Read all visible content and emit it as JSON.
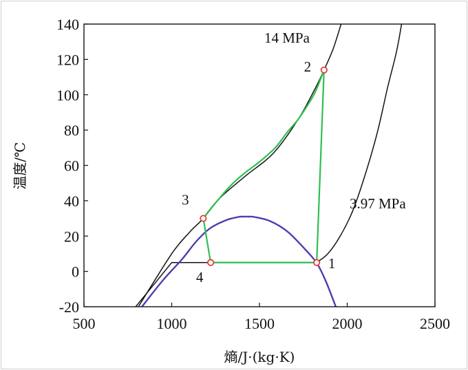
{
  "chart_data": {
    "type": "line",
    "xlabel": "熵/J·(kg·K)",
    "ylabel": "温度/℃",
    "xlim": [
      500,
      2500
    ],
    "ylim": [
      -20,
      140
    ],
    "x_ticks": [
      500,
      1000,
      1500,
      2000,
      2500
    ],
    "y_ticks": [
      -20,
      0,
      20,
      40,
      60,
      80,
      100,
      120,
      140
    ],
    "grid": false,
    "colors": {
      "saturation_dome": "#4a3fb0",
      "cycle": "#2fbf4f",
      "isobar": "#111111",
      "state_point": "#e23b3b"
    },
    "series": [
      {
        "name": "14 MPa",
        "role": "isobar",
        "points": [
          [
            810,
            -20
          ],
          [
            1000,
            10
          ],
          [
            1100,
            22
          ],
          [
            1180,
            30
          ],
          [
            1280,
            42
          ],
          [
            1420,
            54
          ],
          [
            1580,
            67
          ],
          [
            1720,
            86
          ],
          [
            1815,
            103
          ],
          [
            1868,
            114
          ],
          [
            1920,
            126
          ],
          [
            1965,
            140
          ]
        ]
      },
      {
        "name": "3.97 MPa",
        "role": "isobar",
        "points": [
          [
            795,
            -20
          ],
          [
            1000,
            5
          ],
          [
            1825,
            5
          ],
          [
            1890,
            10
          ],
          [
            1960,
            20
          ],
          [
            2030,
            34
          ],
          [
            2100,
            54
          ],
          [
            2170,
            78
          ],
          [
            2230,
            104
          ],
          [
            2280,
            124
          ],
          [
            2310,
            140
          ]
        ]
      },
      {
        "role": "saturation_dome",
        "points": [
          [
            830,
            -20
          ],
          [
            950,
            -5
          ],
          [
            1060,
            7
          ],
          [
            1140,
            17
          ],
          [
            1220,
            24.5
          ],
          [
            1310,
            29
          ],
          [
            1380,
            30.8
          ],
          [
            1400,
            31
          ],
          [
            1440,
            31
          ],
          [
            1470,
            30.8
          ],
          [
            1560,
            28.5
          ],
          [
            1660,
            22.5
          ],
          [
            1760,
            12.5
          ],
          [
            1828,
            4.5
          ],
          [
            1880,
            -6
          ],
          [
            1935,
            -20
          ]
        ]
      },
      {
        "role": "cycle",
        "points": [
          [
            1826,
            5
          ],
          [
            1868,
            114
          ],
          [
            1820,
            102
          ],
          [
            1780,
            95
          ],
          [
            1720,
            86
          ],
          [
            1660,
            79
          ],
          [
            1590,
            70
          ],
          [
            1500,
            62
          ],
          [
            1420,
            56
          ],
          [
            1340,
            49
          ],
          [
            1260,
            40
          ],
          [
            1218,
            35
          ],
          [
            1180,
            30
          ],
          [
            1222,
            5
          ],
          [
            1826,
            5
          ]
        ]
      }
    ],
    "state_points": [
      {
        "label": "1",
        "x": 1826,
        "y": 5
      },
      {
        "label": "2",
        "x": 1868,
        "y": 114
      },
      {
        "label": "3",
        "x": 1180,
        "y": 30
      },
      {
        "label": "4",
        "x": 1222,
        "y": 5
      }
    ]
  }
}
